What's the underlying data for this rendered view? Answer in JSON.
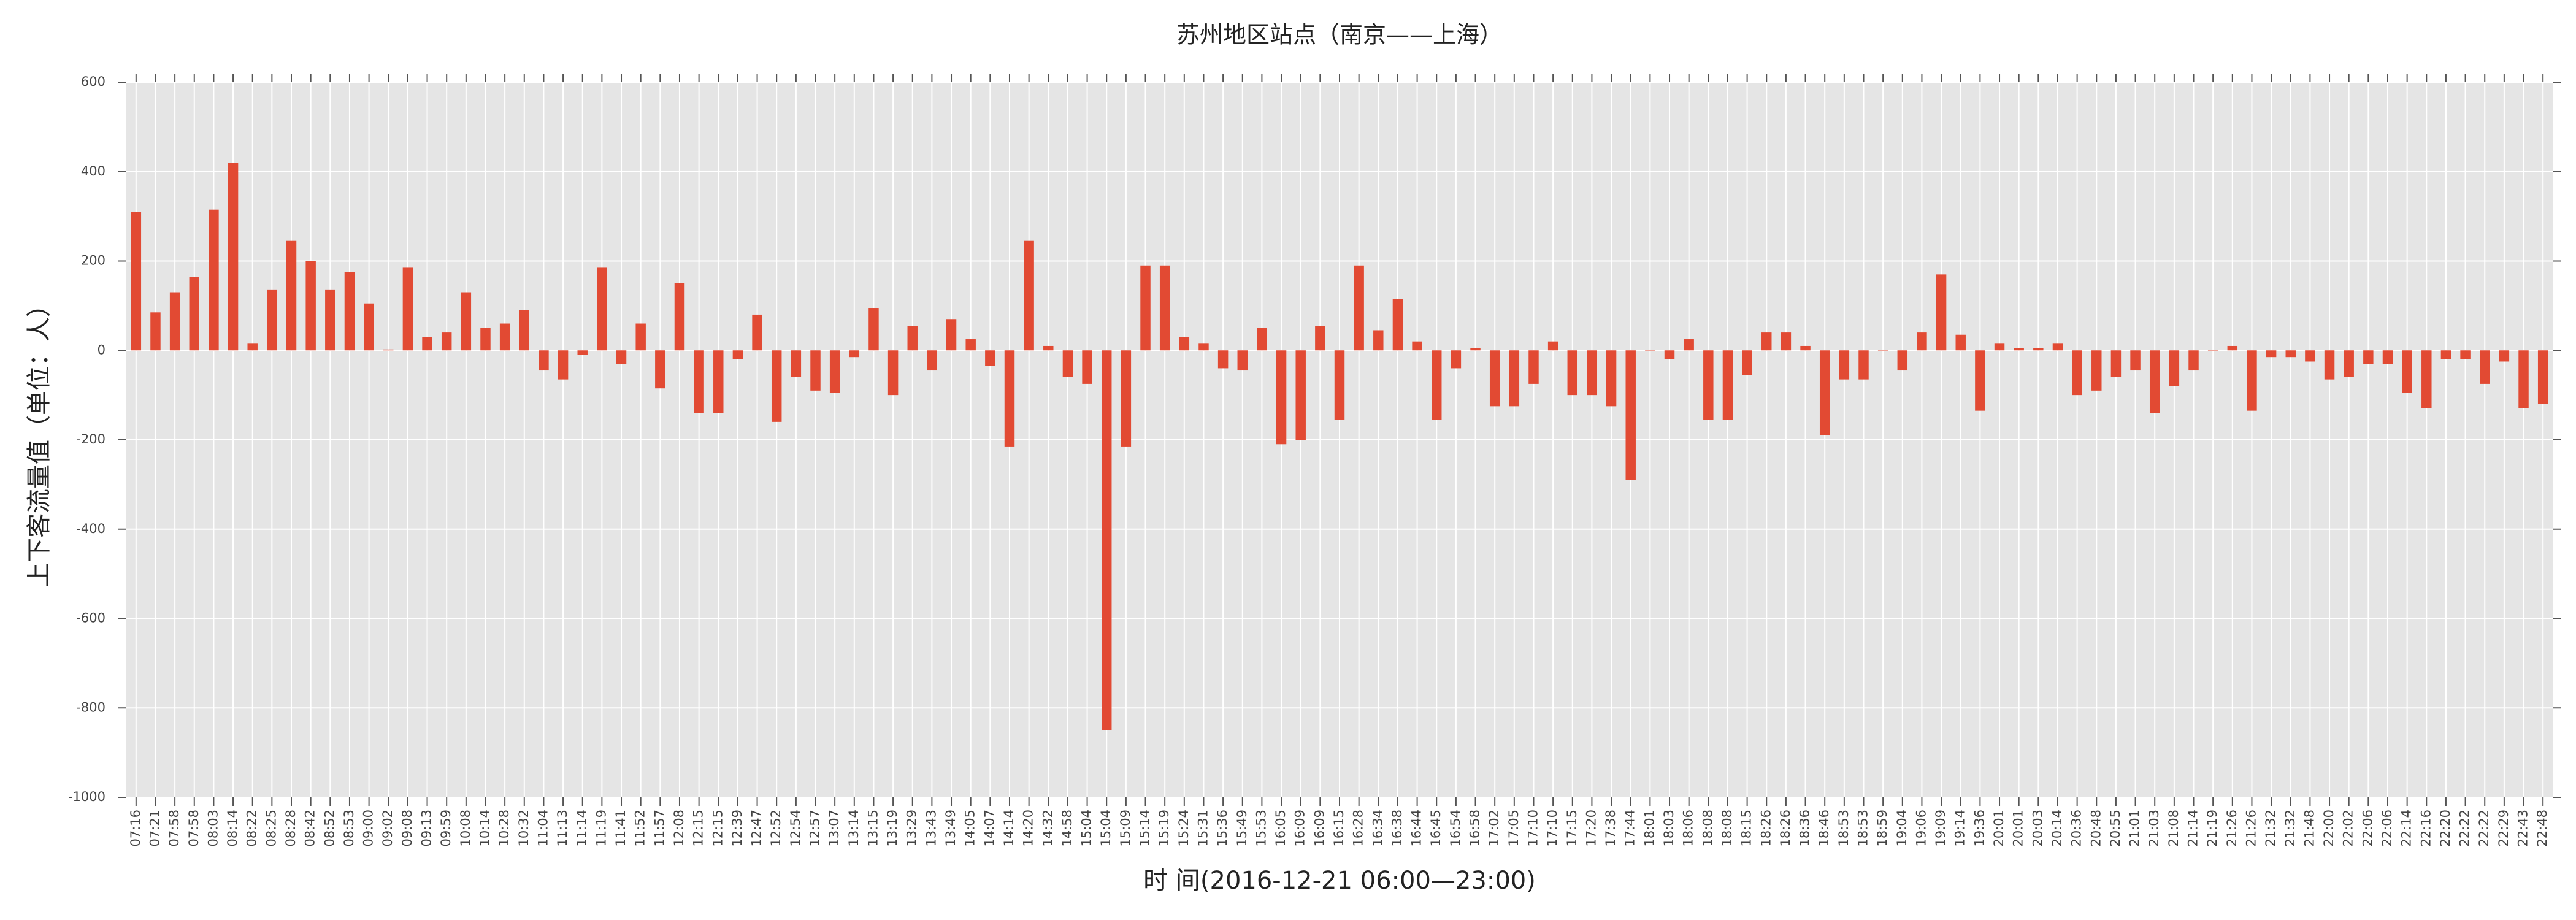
{
  "chart_data": {
    "type": "bar",
    "title": "苏州地区站点（南京——上海）",
    "x_label": "时 间(2016-12-21 06:00—23:00)",
    "y_label": "上下客流量值（单位：人）",
    "categories": [
      "07:16",
      "07:21",
      "07:58",
      "07:58",
      "08:03",
      "08:14",
      "08:22",
      "08:25",
      "08:28",
      "08:42",
      "08:52",
      "08:53",
      "09:00",
      "09:02",
      "09:08",
      "09:13",
      "09:59",
      "10:08",
      "10:14",
      "10:28",
      "10:32",
      "11:04",
      "11:13",
      "11:14",
      "11:19",
      "11:41",
      "11:52",
      "11:57",
      "12:08",
      "12:15",
      "12:15",
      "12:39",
      "12:47",
      "12:52",
      "12:54",
      "12:57",
      "13:07",
      "13:14",
      "13:15",
      "13:19",
      "13:29",
      "13:43",
      "13:49",
      "14:05",
      "14:07",
      "14:14",
      "14:20",
      "14:32",
      "14:58",
      "15:04",
      "15:04",
      "15:09",
      "15:14",
      "15:19",
      "15:24",
      "15:31",
      "15:36",
      "15:49",
      "15:53",
      "16:05",
      "16:09",
      "16:09",
      "16:15",
      "16:28",
      "16:34",
      "16:38",
      "16:44",
      "16:45",
      "16:54",
      "16:58",
      "17:02",
      "17:05",
      "17:10",
      "17:10",
      "17:15",
      "17:20",
      "17:38",
      "17:44",
      "18:01",
      "18:03",
      "18:06",
      "18:08",
      "18:08",
      "18:15",
      "18:26",
      "18:26",
      "18:36",
      "18:46",
      "18:53",
      "18:53",
      "18:59",
      "19:04",
      "19:06",
      "19:09",
      "19:14",
      "19:36",
      "20:01",
      "20:01",
      "20:03",
      "20:14",
      "20:36",
      "20:48",
      "20:55",
      "21:01",
      "21:03",
      "21:08",
      "21:14",
      "21:19",
      "21:26",
      "21:26",
      "21:32",
      "21:32",
      "21:48",
      "22:00",
      "22:02",
      "22:06",
      "22:06",
      "22:14",
      "22:16",
      "22:20",
      "22:22",
      "22:22",
      "22:29",
      "22:43",
      "22:48"
    ],
    "values": [
      310,
      85,
      130,
      165,
      315,
      420,
      15,
      135,
      245,
      200,
      135,
      175,
      105,
      2,
      185,
      30,
      40,
      130,
      50,
      60,
      90,
      -45,
      -65,
      -10,
      185,
      -30,
      60,
      -85,
      150,
      -140,
      -140,
      -20,
      80,
      -160,
      -60,
      -90,
      -95,
      -15,
      95,
      -100,
      55,
      -45,
      70,
      25,
      -35,
      -215,
      245,
      10,
      -60,
      -75,
      -850,
      -215,
      190,
      190,
      30,
      15,
      -40,
      -45,
      50,
      -210,
      -200,
      55,
      -155,
      190,
      45,
      115,
      20,
      -155,
      -40,
      5,
      -125,
      -125,
      -75,
      20,
      -100,
      -100,
      -125,
      -290,
      0,
      -20,
      25,
      -155,
      -155,
      -55,
      40,
      40,
      10,
      -190,
      -65,
      -65,
      0,
      -45,
      40,
      170,
      35,
      -135,
      15,
      5,
      5,
      15,
      -100,
      -90,
      -60,
      -45,
      -140,
      -80,
      -45,
      0,
      10,
      -135,
      -15,
      -15,
      -25,
      -65,
      -60,
      -30,
      -30,
      -95,
      -130,
      -20,
      -20,
      -75,
      -25,
      -130,
      -120
    ],
    "color": "#e24a33",
    "ylim": [
      -1000,
      600
    ],
    "yticks": [
      -1000,
      -800,
      -600,
      -400,
      -200,
      0,
      200,
      400,
      600
    ],
    "grid": true
  }
}
